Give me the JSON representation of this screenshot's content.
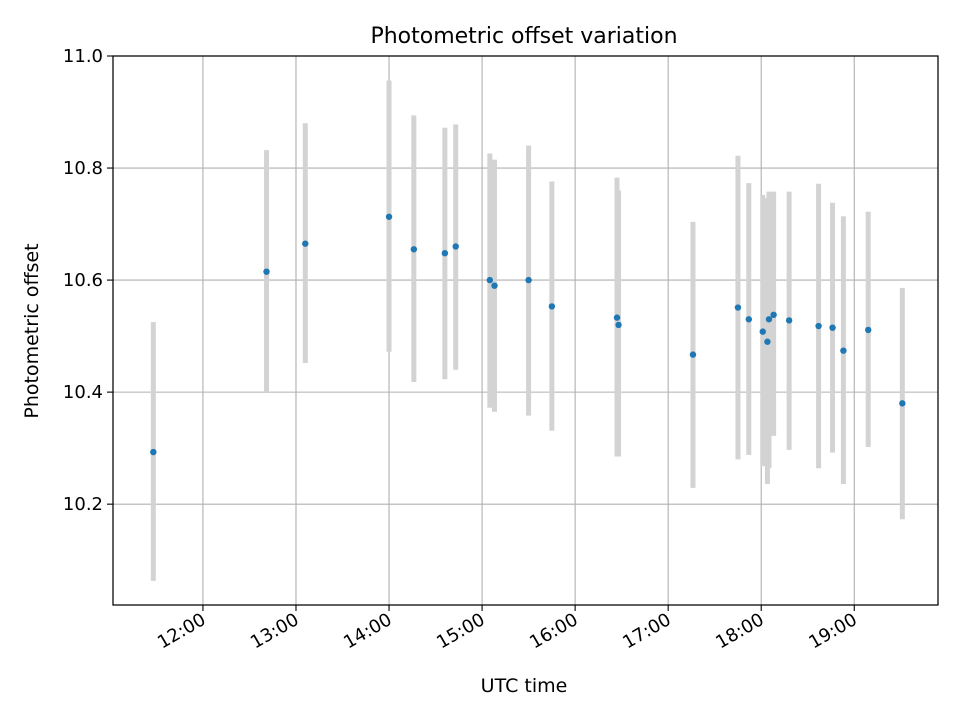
{
  "chart_data": {
    "type": "scatter",
    "title": "Photometric offset variation",
    "xlabel": "UTC time",
    "ylabel": "Photometric offset",
    "x_ticks": [
      "12:00",
      "13:00",
      "14:00",
      "15:00",
      "16:00",
      "17:00",
      "18:00",
      "19:00"
    ],
    "y_ticks": [
      "10.2",
      "10.4",
      "10.6",
      "10.8",
      "11.0"
    ],
    "xlim": [
      "11:02",
      "19:54"
    ],
    "ylim": [
      10.02,
      11.0
    ],
    "grid": true,
    "colors": {
      "point": "#1f77b4",
      "errorbar": "#d3d3d3",
      "grid": "#b0b0b0"
    },
    "points": [
      {
        "x": "11:28",
        "y": 10.293,
        "yerr_low": 10.063,
        "yerr_high": 10.525
      },
      {
        "x": "12:41",
        "y": 10.615,
        "yerr_low": 10.4,
        "yerr_high": 10.832
      },
      {
        "x": "13:06",
        "y": 10.665,
        "yerr_low": 10.452,
        "yerr_high": 10.88
      },
      {
        "x": "14:00",
        "y": 10.713,
        "yerr_low": 10.472,
        "yerr_high": 10.956
      },
      {
        "x": "14:16",
        "y": 10.655,
        "yerr_low": 10.418,
        "yerr_high": 10.894
      },
      {
        "x": "14:36",
        "y": 10.648,
        "yerr_low": 10.423,
        "yerr_high": 10.872
      },
      {
        "x": "14:43",
        "y": 10.66,
        "yerr_low": 10.44,
        "yerr_high": 10.878
      },
      {
        "x": "15:05",
        "y": 10.6,
        "yerr_low": 10.372,
        "yerr_high": 10.826
      },
      {
        "x": "15:08",
        "y": 10.59,
        "yerr_low": 10.365,
        "yerr_high": 10.815
      },
      {
        "x": "15:30",
        "y": 10.6,
        "yerr_low": 10.358,
        "yerr_high": 10.84
      },
      {
        "x": "15:45",
        "y": 10.553,
        "yerr_low": 10.331,
        "yerr_high": 10.776
      },
      {
        "x": "16:27",
        "y": 10.533,
        "yerr_low": 10.285,
        "yerr_high": 10.783
      },
      {
        "x": "16:28",
        "y": 10.52,
        "yerr_low": 10.285,
        "yerr_high": 10.76
      },
      {
        "x": "17:16",
        "y": 10.467,
        "yerr_low": 10.229,
        "yerr_high": 10.704
      },
      {
        "x": "17:45",
        "y": 10.551,
        "yerr_low": 10.28,
        "yerr_high": 10.822
      },
      {
        "x": "17:52",
        "y": 10.53,
        "yerr_low": 10.288,
        "yerr_high": 10.773
      },
      {
        "x": "18:01",
        "y": 10.508,
        "yerr_low": 10.268,
        "yerr_high": 10.752
      },
      {
        "x": "18:04",
        "y": 10.49,
        "yerr_low": 10.236,
        "yerr_high": 10.746
      },
      {
        "x": "18:05",
        "y": 10.53,
        "yerr_low": 10.264,
        "yerr_high": 10.758
      },
      {
        "x": "18:08",
        "y": 10.538,
        "yerr_low": 10.322,
        "yerr_high": 10.758
      },
      {
        "x": "18:18",
        "y": 10.528,
        "yerr_low": 10.297,
        "yerr_high": 10.758
      },
      {
        "x": "18:37",
        "y": 10.518,
        "yerr_low": 10.264,
        "yerr_high": 10.772
      },
      {
        "x": "18:46",
        "y": 10.515,
        "yerr_low": 10.292,
        "yerr_high": 10.738
      },
      {
        "x": "18:53",
        "y": 10.474,
        "yerr_low": 10.236,
        "yerr_high": 10.714
      },
      {
        "x": "19:09",
        "y": 10.511,
        "yerr_low": 10.302,
        "yerr_high": 10.722
      },
      {
        "x": "19:31",
        "y": 10.38,
        "yerr_low": 10.173,
        "yerr_high": 10.586
      }
    ]
  }
}
